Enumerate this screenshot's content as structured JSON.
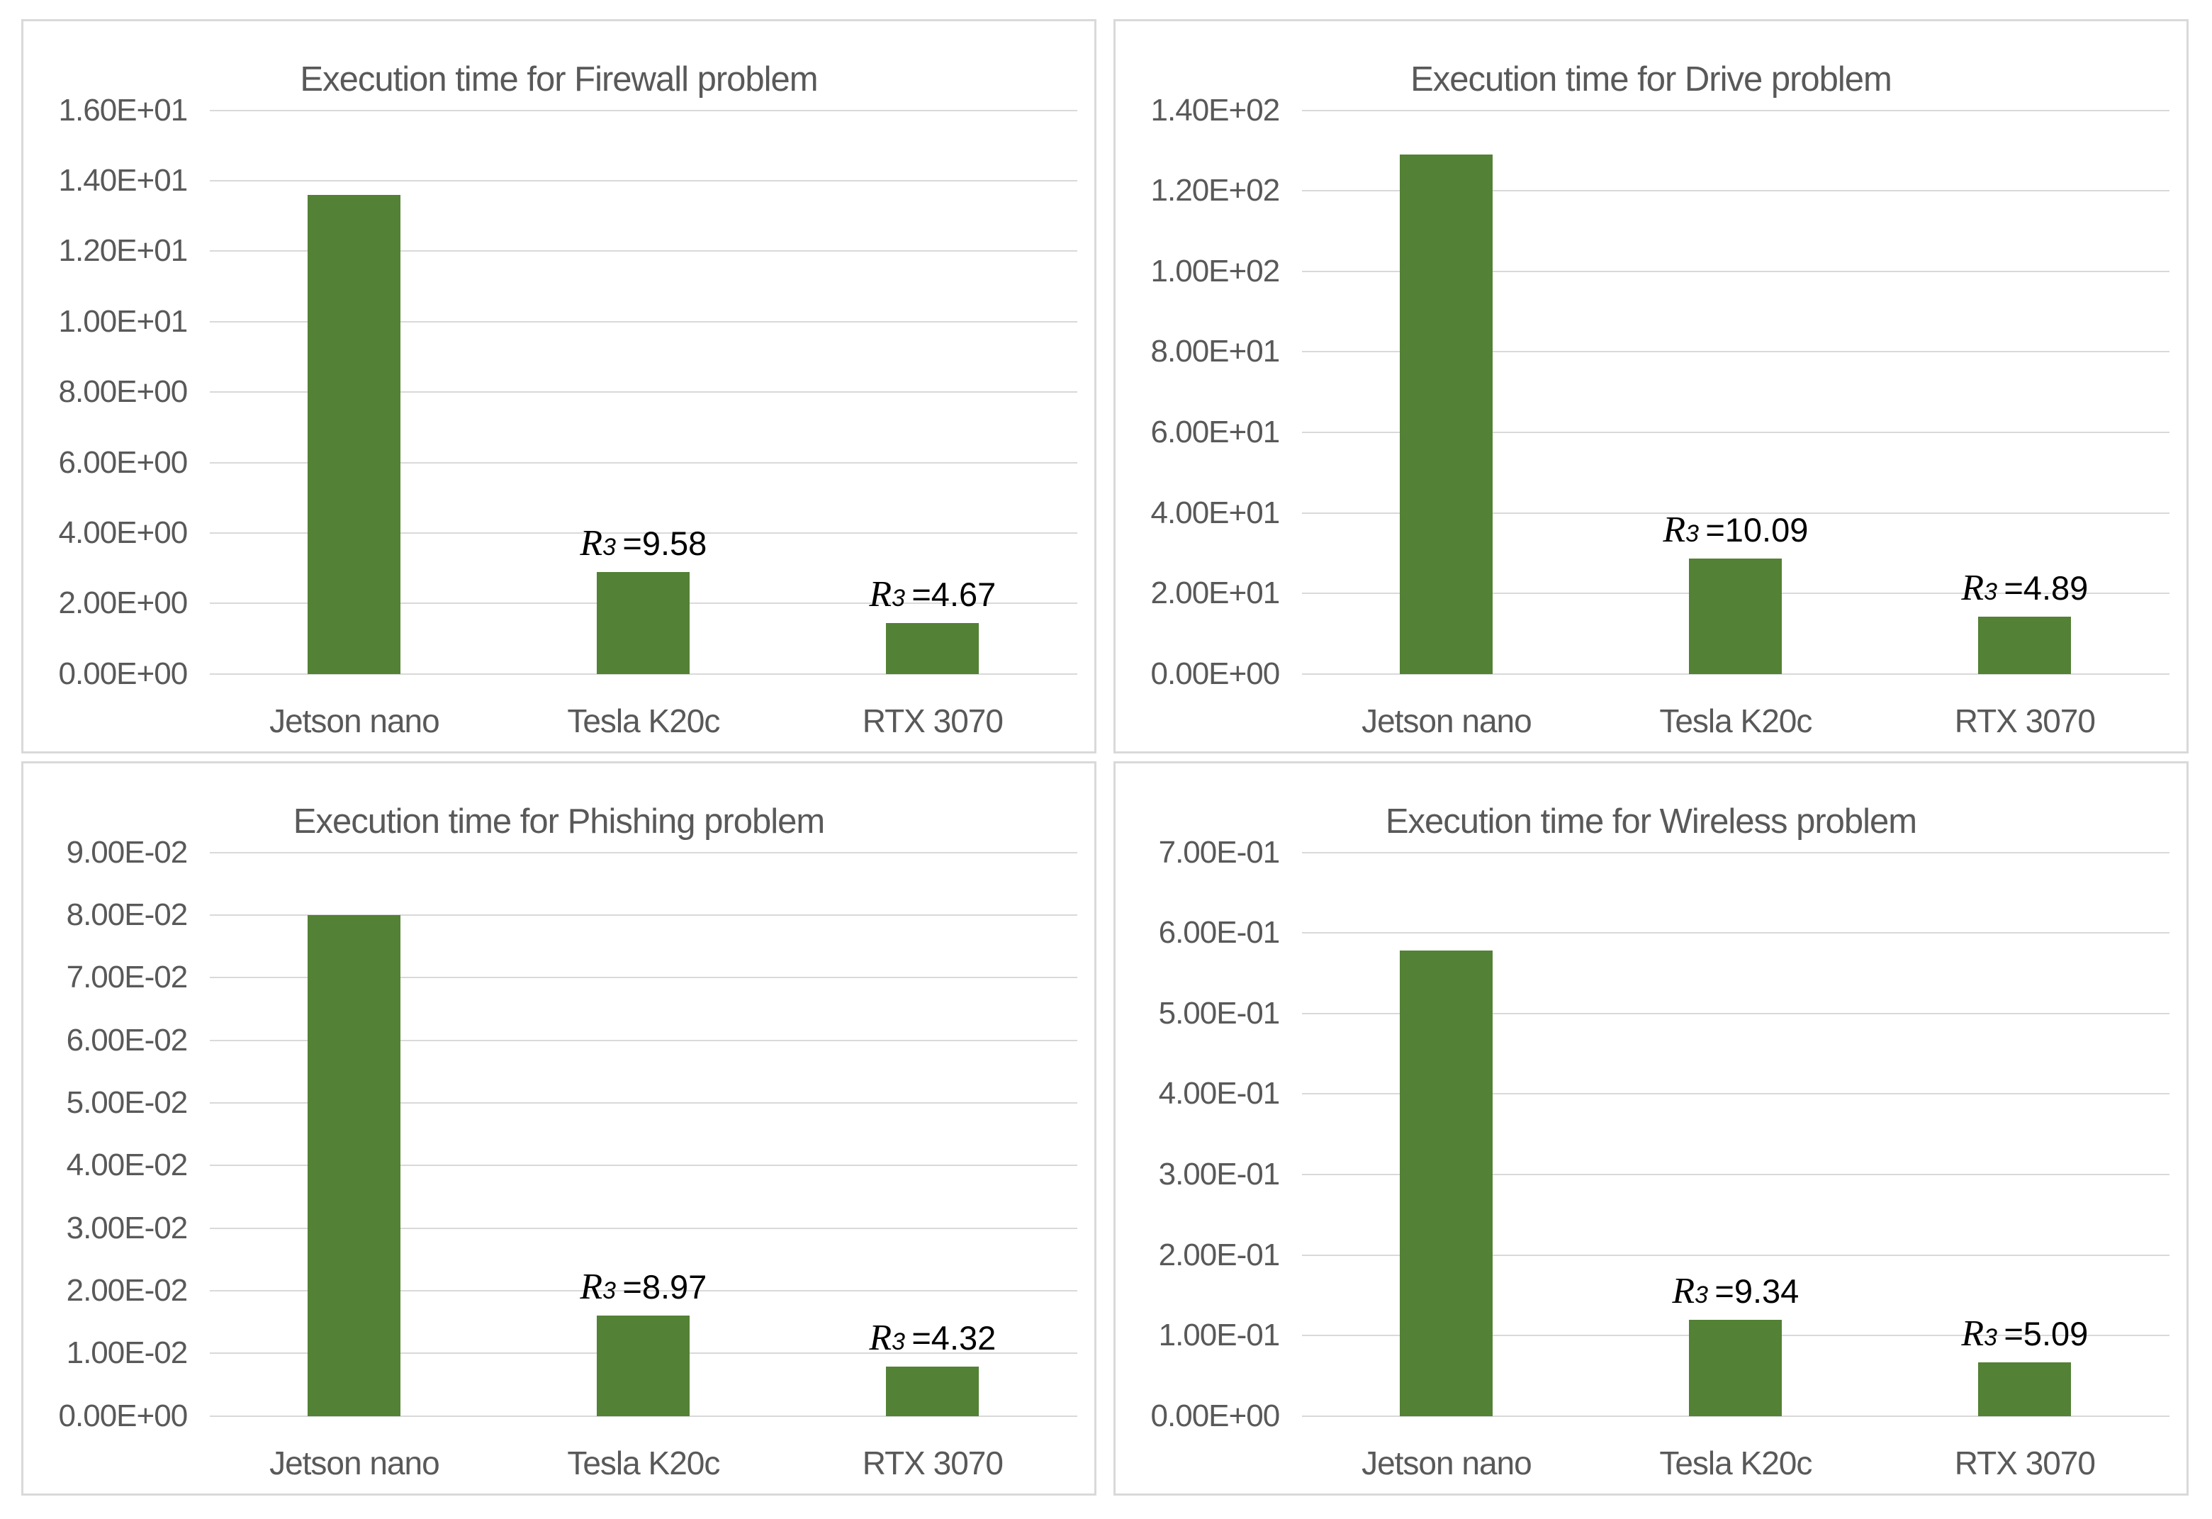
{
  "figure": {
    "background": "#ffffff",
    "panel_border_color": "#d9d9d9",
    "gridline_color": "#d9d9d9",
    "bar_color": "#538135",
    "axis_text_color": "#595959",
    "annotation_text_color": "#000000"
  },
  "ratio_label": {
    "symbol": "R",
    "subscript": "3",
    "equals": "="
  },
  "chart_data": [
    {
      "type": "bar",
      "title": "Execution time for Firewall problem",
      "categories": [
        "Jetson nano",
        "Tesla K20c",
        "RTX 3070"
      ],
      "values": [
        13.6,
        2.9,
        1.45
      ],
      "ylim": [
        0,
        16
      ],
      "ytick_step": 2,
      "yticks": [
        "0.00E+00",
        "2.00E+00",
        "4.00E+00",
        "6.00E+00",
        "8.00E+00",
        "1.00E+01",
        "1.20E+01",
        "1.40E+01",
        "1.60E+01"
      ],
      "annotations": [
        null,
        "9.58",
        "4.67"
      ],
      "grid": true,
      "legend": "none"
    },
    {
      "type": "bar",
      "title": "Execution time for Drive problem",
      "categories": [
        "Jetson nano",
        "Tesla K20c",
        "RTX 3070"
      ],
      "values": [
        129,
        28.7,
        14.2
      ],
      "ylim": [
        0,
        140
      ],
      "ytick_step": 20,
      "yticks": [
        "0.00E+00",
        "2.00E+01",
        "4.00E+01",
        "6.00E+01",
        "8.00E+01",
        "1.00E+02",
        "1.20E+02",
        "1.40E+02"
      ],
      "annotations": [
        null,
        "10.09",
        "4.89"
      ],
      "grid": true,
      "legend": "none"
    },
    {
      "type": "bar",
      "title": "Execution time for Phishing problem",
      "categories": [
        "Jetson nano",
        "Tesla K20c",
        "RTX 3070"
      ],
      "values": [
        0.08,
        0.016,
        0.0079
      ],
      "ylim": [
        0,
        0.09
      ],
      "ytick_step": 0.01,
      "yticks": [
        "0.00E+00",
        "1.00E-02",
        "2.00E-02",
        "3.00E-02",
        "4.00E-02",
        "5.00E-02",
        "6.00E-02",
        "7.00E-02",
        "8.00E-02",
        "9.00E-02"
      ],
      "annotations": [
        null,
        "8.97",
        "4.32"
      ],
      "grid": true,
      "legend": "none"
    },
    {
      "type": "bar",
      "title": "Execution time for Wireless problem",
      "categories": [
        "Jetson nano",
        "Tesla K20c",
        "RTX 3070"
      ],
      "values": [
        0.578,
        0.12,
        0.067
      ],
      "ylim": [
        0,
        0.7
      ],
      "ytick_step": 0.1,
      "yticks": [
        "0.00E+00",
        "1.00E-01",
        "2.00E-01",
        "3.00E-01",
        "4.00E-01",
        "5.00E-01",
        "6.00E-01",
        "7.00E-01"
      ],
      "annotations": [
        null,
        "9.34",
        "5.09"
      ],
      "grid": true,
      "legend": "none"
    }
  ]
}
